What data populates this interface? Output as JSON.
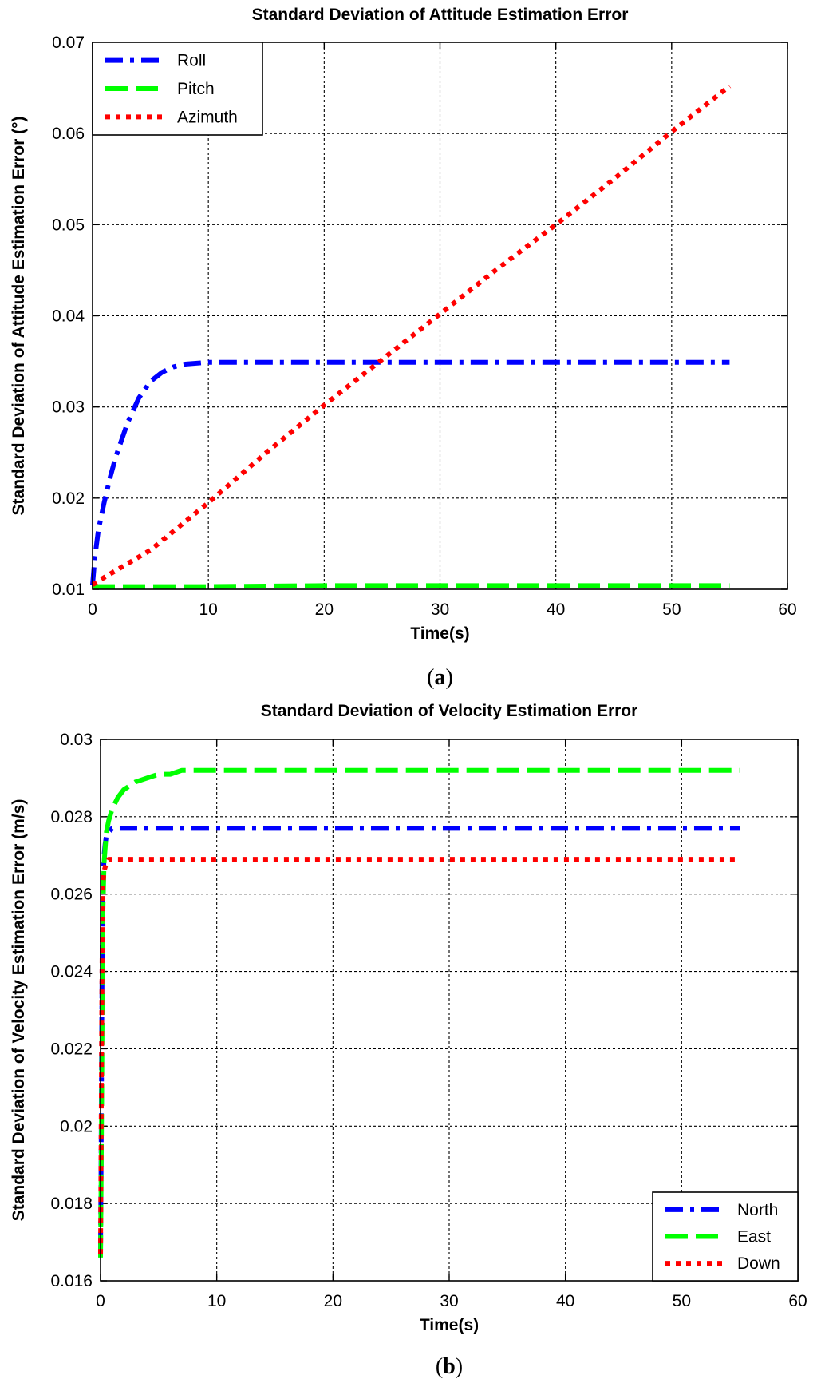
{
  "chart_data": [
    {
      "type": "line",
      "title": "Standard Deviation of Attitude Estimation Error",
      "xlabel": "Time(s)",
      "ylabel": "Standard Deviation of Attitude Estimation Error (°)",
      "xlim": [
        0,
        60
      ],
      "ylim": [
        0.01,
        0.07
      ],
      "xticks": [
        0,
        10,
        20,
        30,
        40,
        50,
        60
      ],
      "yticks": [
        0.01,
        0.02,
        0.03,
        0.04,
        0.05,
        0.06,
        0.07
      ],
      "xtick_labels": [
        "0",
        "10",
        "20",
        "30",
        "40",
        "50",
        "60"
      ],
      "ytick_labels": [
        "0.01",
        "0.02",
        "0.03",
        "0.04",
        "0.05",
        "0.06",
        "0.07"
      ],
      "grid": true,
      "legend_position": "top-left",
      "caption": "(a)",
      "caption_letter": "a",
      "series": [
        {
          "name": "Roll",
          "color": "#0000ff",
          "style": "dash-dot",
          "x": [
            0,
            0.2,
            0.5,
            1,
            1.5,
            2,
            3,
            4,
            5,
            6,
            7,
            8,
            10,
            15,
            20,
            30,
            40,
            50,
            55
          ],
          "y": [
            0.0105,
            0.0135,
            0.0165,
            0.0195,
            0.0222,
            0.0245,
            0.0282,
            0.031,
            0.0328,
            0.0338,
            0.0344,
            0.0347,
            0.0349,
            0.0349,
            0.0349,
            0.0349,
            0.0349,
            0.0349,
            0.0349
          ]
        },
        {
          "name": "Pitch",
          "color": "#00ff00",
          "style": "dashed",
          "x": [
            0,
            5,
            10,
            20,
            30,
            40,
            50,
            55
          ],
          "y": [
            0.0103,
            0.0103,
            0.0103,
            0.0104,
            0.0104,
            0.0104,
            0.0104,
            0.0104
          ]
        },
        {
          "name": "Azimuth",
          "color": "#ff0000",
          "style": "dotted",
          "x": [
            0,
            1,
            3,
            5,
            10,
            15,
            20,
            25,
            30,
            35,
            40,
            45,
            50,
            55
          ],
          "y": [
            0.0105,
            0.0113,
            0.0128,
            0.0143,
            0.0195,
            0.025,
            0.0302,
            0.0352,
            0.0402,
            0.0452,
            0.05,
            0.055,
            0.0602,
            0.0652
          ]
        }
      ]
    },
    {
      "type": "line",
      "title": "Standard Deviation of Velocity Estimation Error",
      "xlabel": "Time(s)",
      "ylabel": "Standard Deviation of Velocity Estimation Error (m/s)",
      "xlim": [
        0,
        60
      ],
      "ylim": [
        0.016,
        0.03
      ],
      "xticks": [
        0,
        10,
        20,
        30,
        40,
        50,
        60
      ],
      "yticks": [
        0.016,
        0.018,
        0.02,
        0.022,
        0.024,
        0.026,
        0.028,
        0.03
      ],
      "xtick_labels": [
        "0",
        "10",
        "20",
        "30",
        "40",
        "50",
        "60"
      ],
      "ytick_labels": [
        "0.016",
        "0.018",
        "0.02",
        "0.022",
        "0.024",
        "0.026",
        "0.028",
        "0.03"
      ],
      "grid": true,
      "legend_position": "bottom-right",
      "caption": "(b)",
      "caption_letter": "b",
      "series": [
        {
          "name": "North",
          "color": "#0000ff",
          "style": "dash-dot",
          "x": [
            0,
            0.05,
            0.1,
            0.15,
            0.2,
            0.3,
            0.4,
            0.5,
            0.7,
            1,
            1.5,
            2,
            3,
            5,
            10,
            20,
            30,
            40,
            50,
            55
          ],
          "y": [
            0.0168,
            0.019,
            0.0225,
            0.0248,
            0.026,
            0.027,
            0.0273,
            0.0275,
            0.0276,
            0.0277,
            0.0277,
            0.0277,
            0.0277,
            0.0277,
            0.0277,
            0.0277,
            0.0277,
            0.0277,
            0.0277,
            0.0277
          ]
        },
        {
          "name": "East",
          "color": "#00ff00",
          "style": "dashed",
          "x": [
            0,
            0.05,
            0.1,
            0.15,
            0.2,
            0.3,
            0.5,
            0.7,
            1,
            1.5,
            2,
            3,
            4,
            5,
            6,
            7,
            10,
            20,
            30,
            40,
            50,
            55
          ],
          "y": [
            0.0166,
            0.0185,
            0.021,
            0.0235,
            0.0255,
            0.0268,
            0.0276,
            0.0279,
            0.0282,
            0.0285,
            0.0287,
            0.0289,
            0.029,
            0.0291,
            0.0291,
            0.0292,
            0.0292,
            0.0292,
            0.0292,
            0.0292,
            0.0292,
            0.0292
          ]
        },
        {
          "name": "Down",
          "color": "#ff0000",
          "style": "dotted",
          "x": [
            0,
            0.05,
            0.1,
            0.15,
            0.2,
            0.3,
            0.5,
            0.7,
            1,
            2,
            5,
            10,
            20,
            30,
            40,
            50,
            55
          ],
          "y": [
            0.0167,
            0.0195,
            0.0228,
            0.0252,
            0.0262,
            0.0266,
            0.0268,
            0.0269,
            0.0269,
            0.0269,
            0.0269,
            0.0269,
            0.0269,
            0.0269,
            0.0269,
            0.0269,
            0.0269
          ]
        }
      ]
    }
  ]
}
